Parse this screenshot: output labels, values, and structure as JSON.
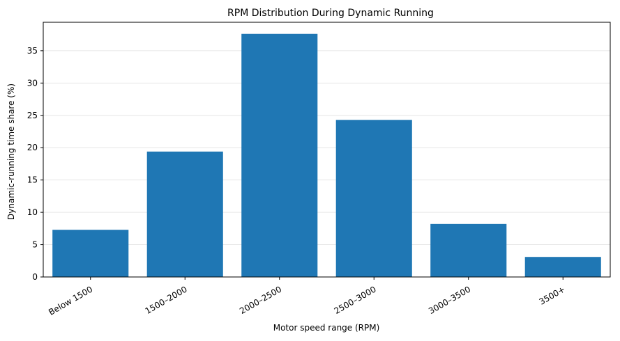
{
  "chart_data": {
    "type": "bar",
    "title": "RPM Distribution During Dynamic Running",
    "xlabel": "Motor speed range (RPM)",
    "ylabel": "Dynamic-running time share (%)",
    "categories": [
      "Below 1500",
      "1500–2000",
      "2000–2500",
      "2500–3000",
      "3000–3500",
      "3500+"
    ],
    "values": [
      7.3,
      19.4,
      37.6,
      24.3,
      8.2,
      3.1
    ],
    "ylim": [
      0,
      39.4
    ],
    "yticks": [
      0,
      5,
      10,
      15,
      20,
      25,
      30,
      35
    ],
    "grid": "y",
    "bar_color": "#1f77b4",
    "grid_color": "#e6e6e6"
  }
}
